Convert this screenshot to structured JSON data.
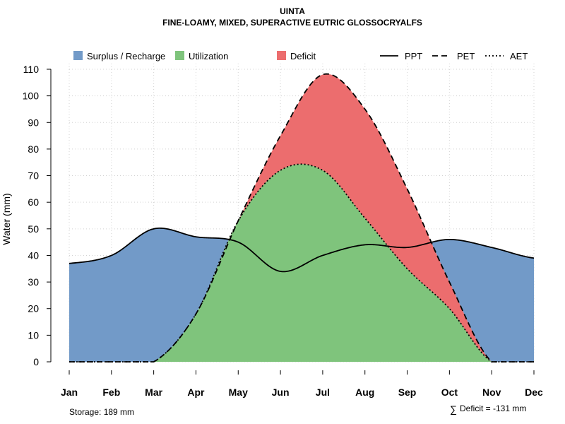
{
  "chart_data": {
    "type": "area",
    "title": "UINTA",
    "subtitle": "FINE-LOAMY, MIXED, SUPERACTIVE EUTRIC GLOSSOCRYALFS",
    "xlabel": "",
    "ylabel": "Water (mm)",
    "ylim": [
      0,
      110
    ],
    "yticks": [
      "0",
      "10",
      "20",
      "30",
      "40",
      "50",
      "60",
      "70",
      "80",
      "90",
      "100",
      "110"
    ],
    "categories": [
      "Jan",
      "Feb",
      "Mar",
      "Apr",
      "May",
      "Jun",
      "Jul",
      "Aug",
      "Sep",
      "Oct",
      "Nov",
      "Dec"
    ],
    "grid": true,
    "legend_fill": [
      {
        "name": "Surplus / Recharge",
        "color": "#729ac8"
      },
      {
        "name": "Utilization",
        "color": "#7fc47c"
      },
      {
        "name": "Deficit",
        "color": "#ec6d6e"
      }
    ],
    "legend_lines": [
      {
        "name": "PPT",
        "dash": "solid"
      },
      {
        "name": "PET",
        "dash": "dashed"
      },
      {
        "name": "AET",
        "dash": "dotted"
      }
    ],
    "series": [
      {
        "name": "PPT",
        "values": [
          37,
          40,
          50,
          47,
          45,
          34,
          40,
          44,
          43,
          46,
          43,
          39
        ]
      },
      {
        "name": "PET",
        "values": [
          0,
          0,
          0,
          18,
          53,
          85,
          108,
          95,
          65,
          30,
          0,
          0
        ]
      },
      {
        "name": "AET",
        "values": [
          0,
          0,
          0,
          18,
          53,
          72,
          72,
          54,
          35,
          20,
          0,
          0
        ]
      }
    ],
    "annotations": {
      "storage": "Storage: 189 mm",
      "deficit_symbol": "∑",
      "deficit": "Deficit = -131 mm"
    }
  }
}
